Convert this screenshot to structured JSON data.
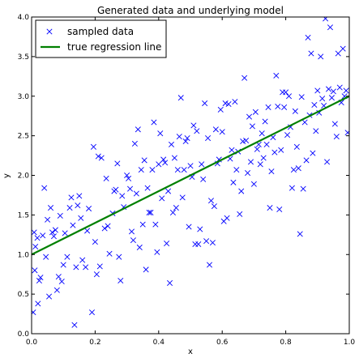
{
  "chart_data": {
    "type": "scatter",
    "title": "Generated data and underlying model",
    "xlabel": "x",
    "ylabel": "y",
    "xlim": [
      0.0,
      1.0
    ],
    "ylim": [
      0.0,
      4.0
    ],
    "x_ticks": [
      "0.0",
      "0.2",
      "0.4",
      "0.6",
      "0.8",
      "1.0"
    ],
    "y_ticks": [
      "0.0",
      "0.5",
      "1.0",
      "1.5",
      "2.0",
      "2.5",
      "3.0",
      "3.5",
      "4.0"
    ],
    "grid": false,
    "legend_position": "top-left",
    "series": [
      {
        "name": "sampled data",
        "kind": "scatter",
        "marker": "x",
        "color": "#0000ff",
        "points": [
          [
            0.005,
            0.27
          ],
          [
            0.008,
            1.28
          ],
          [
            0.01,
            0.8
          ],
          [
            0.012,
            1.1
          ],
          [
            0.018,
            1.21
          ],
          [
            0.02,
            0.38
          ],
          [
            0.024,
            0.67
          ],
          [
            0.028,
            0.71
          ],
          [
            0.035,
            1.24
          ],
          [
            0.04,
            1.84
          ],
          [
            0.045,
            0.97
          ],
          [
            0.05,
            1.44
          ],
          [
            0.055,
            0.47
          ],
          [
            0.06,
            1.59
          ],
          [
            0.065,
            1.28
          ],
          [
            0.07,
            1.23
          ],
          [
            0.075,
            1.31
          ],
          [
            0.08,
            0.55
          ],
          [
            0.085,
            0.72
          ],
          [
            0.09,
            1.49
          ],
          [
            0.095,
            0.66
          ],
          [
            0.1,
            0.87
          ],
          [
            0.105,
            1.27
          ],
          [
            0.112,
            0.97
          ],
          [
            0.12,
            1.59
          ],
          [
            0.125,
            1.72
          ],
          [
            0.13,
            1.37
          ],
          [
            0.135,
            0.11
          ],
          [
            0.14,
            0.84
          ],
          [
            0.145,
            1.62
          ],
          [
            0.15,
            1.74
          ],
          [
            0.155,
            1.46
          ],
          [
            0.16,
            0.93
          ],
          [
            0.17,
            0.84
          ],
          [
            0.175,
            1.3
          ],
          [
            0.18,
            1.58
          ],
          [
            0.19,
            0.27
          ],
          [
            0.195,
            2.36
          ],
          [
            0.2,
            1.16
          ],
          [
            0.205,
            0.75
          ],
          [
            0.21,
            2.24
          ],
          [
            0.215,
            0.85
          ],
          [
            0.22,
            2.22
          ],
          [
            0.23,
            1.33
          ],
          [
            0.235,
            1.96
          ],
          [
            0.24,
            1.36
          ],
          [
            0.245,
            1.01
          ],
          [
            0.255,
            1.52
          ],
          [
            0.26,
            1.8
          ],
          [
            0.265,
            1.82
          ],
          [
            0.27,
            2.15
          ],
          [
            0.275,
            0.97
          ],
          [
            0.28,
            0.67
          ],
          [
            0.285,
            1.74
          ],
          [
            0.29,
            1.6
          ],
          [
            0.3,
            2.0
          ],
          [
            0.305,
            1.96
          ],
          [
            0.31,
            1.83
          ],
          [
            0.315,
            1.29
          ],
          [
            0.32,
            1.18
          ],
          [
            0.325,
            2.4
          ],
          [
            0.33,
            1.77
          ],
          [
            0.335,
            2.58
          ],
          [
            0.34,
            1.09
          ],
          [
            0.345,
            2.07
          ],
          [
            0.35,
            1.38
          ],
          [
            0.355,
            2.19
          ],
          [
            0.36,
            0.81
          ],
          [
            0.365,
            1.84
          ],
          [
            0.37,
            1.53
          ],
          [
            0.375,
            1.53
          ],
          [
            0.38,
            2.07
          ],
          [
            0.385,
            2.67
          ],
          [
            0.39,
            1.38
          ],
          [
            0.395,
            1.03
          ],
          [
            0.4,
            2.14
          ],
          [
            0.405,
            2.53
          ],
          [
            0.41,
            1.71
          ],
          [
            0.415,
            2.2
          ],
          [
            0.42,
            2.16
          ],
          [
            0.425,
            1.14
          ],
          [
            0.43,
            1.8
          ],
          [
            0.435,
            0.64
          ],
          [
            0.44,
            2.39
          ],
          [
            0.445,
            1.53
          ],
          [
            0.45,
            2.22
          ],
          [
            0.455,
            1.59
          ],
          [
            0.46,
            2.07
          ],
          [
            0.465,
            2.49
          ],
          [
            0.47,
            2.98
          ],
          [
            0.475,
            1.72
          ],
          [
            0.48,
            2.07
          ],
          [
            0.485,
            2.43
          ],
          [
            0.49,
            2.47
          ],
          [
            0.495,
            1.35
          ],
          [
            0.5,
            2.12
          ],
          [
            0.505,
            1.98
          ],
          [
            0.51,
            2.63
          ],
          [
            0.515,
            1.13
          ],
          [
            0.52,
            2.56
          ],
          [
            0.525,
            1.13
          ],
          [
            0.53,
            1.32
          ],
          [
            0.535,
            2.14
          ],
          [
            0.54,
            1.95
          ],
          [
            0.545,
            2.91
          ],
          [
            0.55,
            1.17
          ],
          [
            0.555,
            2.47
          ],
          [
            0.56,
            0.87
          ],
          [
            0.565,
            1.68
          ],
          [
            0.57,
            1.15
          ],
          [
            0.575,
            1.61
          ],
          [
            0.58,
            2.58
          ],
          [
            0.585,
            2.15
          ],
          [
            0.59,
            2.2
          ],
          [
            0.595,
            2.83
          ],
          [
            0.6,
            2.55
          ],
          [
            0.605,
            1.42
          ],
          [
            0.61,
            2.91
          ],
          [
            0.615,
            1.46
          ],
          [
            0.62,
            2.9
          ],
          [
            0.625,
            2.21
          ],
          [
            0.63,
            2.32
          ],
          [
            0.635,
            1.91
          ],
          [
            0.64,
            2.93
          ],
          [
            0.645,
            2.07
          ],
          [
            0.65,
            2.3
          ],
          [
            0.655,
            1.51
          ],
          [
            0.66,
            1.8
          ],
          [
            0.665,
            2.43
          ],
          [
            0.67,
            3.23
          ],
          [
            0.675,
            2.44
          ],
          [
            0.68,
            2.03
          ],
          [
            0.685,
            2.74
          ],
          [
            0.69,
            2.17
          ],
          [
            0.695,
            2.62
          ],
          [
            0.7,
            1.89
          ],
          [
            0.705,
            2.8
          ],
          [
            0.71,
            2.33
          ],
          [
            0.715,
            2.39
          ],
          [
            0.72,
            2.14
          ],
          [
            0.725,
            2.53
          ],
          [
            0.73,
            2.22
          ],
          [
            0.735,
            2.68
          ],
          [
            0.74,
            2.39
          ],
          [
            0.745,
            2.86
          ],
          [
            0.75,
            1.59
          ],
          [
            0.755,
            2.05
          ],
          [
            0.76,
            2.48
          ],
          [
            0.765,
            2.29
          ],
          [
            0.77,
            3.26
          ],
          [
            0.775,
            2.87
          ],
          [
            0.78,
            1.57
          ],
          [
            0.785,
            2.32
          ],
          [
            0.79,
            3.05
          ],
          [
            0.795,
            2.86
          ],
          [
            0.8,
            3.05
          ],
          [
            0.805,
            2.51
          ],
          [
            0.81,
            3.0
          ],
          [
            0.815,
            2.61
          ],
          [
            0.82,
            1.84
          ],
          [
            0.825,
            2.07
          ],
          [
            0.83,
            2.81
          ],
          [
            0.835,
            2.36
          ],
          [
            0.84,
            2.09
          ],
          [
            0.845,
            1.26
          ],
          [
            0.85,
            2.99
          ],
          [
            0.855,
            1.83
          ],
          [
            0.86,
            2.67
          ],
          [
            0.865,
            2.19
          ],
          [
            0.87,
            3.74
          ],
          [
            0.875,
            2.76
          ],
          [
            0.88,
            3.54
          ],
          [
            0.885,
            2.28
          ],
          [
            0.89,
            2.89
          ],
          [
            0.895,
            2.56
          ],
          [
            0.9,
            3.07
          ],
          [
            0.905,
            2.79
          ],
          [
            0.91,
            3.5
          ],
          [
            0.915,
            2.97
          ],
          [
            0.92,
            2.88
          ],
          [
            0.925,
            3.98
          ],
          [
            0.93,
            2.17
          ],
          [
            0.935,
            3.09
          ],
          [
            0.94,
            3.87
          ],
          [
            0.945,
            2.98
          ],
          [
            0.95,
            3.06
          ],
          [
            0.955,
            2.65
          ],
          [
            0.96,
            2.49
          ],
          [
            0.965,
            3.54
          ],
          [
            0.97,
            3.11
          ],
          [
            0.975,
            2.92
          ],
          [
            0.98,
            3.6
          ],
          [
            0.985,
            3.0
          ],
          [
            0.99,
            3.07
          ],
          [
            0.995,
            2.54
          ]
        ]
      },
      {
        "name": "true regression line",
        "kind": "line",
        "color": "#008000",
        "x": [
          0.0,
          1.0
        ],
        "y": [
          1.0,
          3.0
        ]
      }
    ]
  }
}
